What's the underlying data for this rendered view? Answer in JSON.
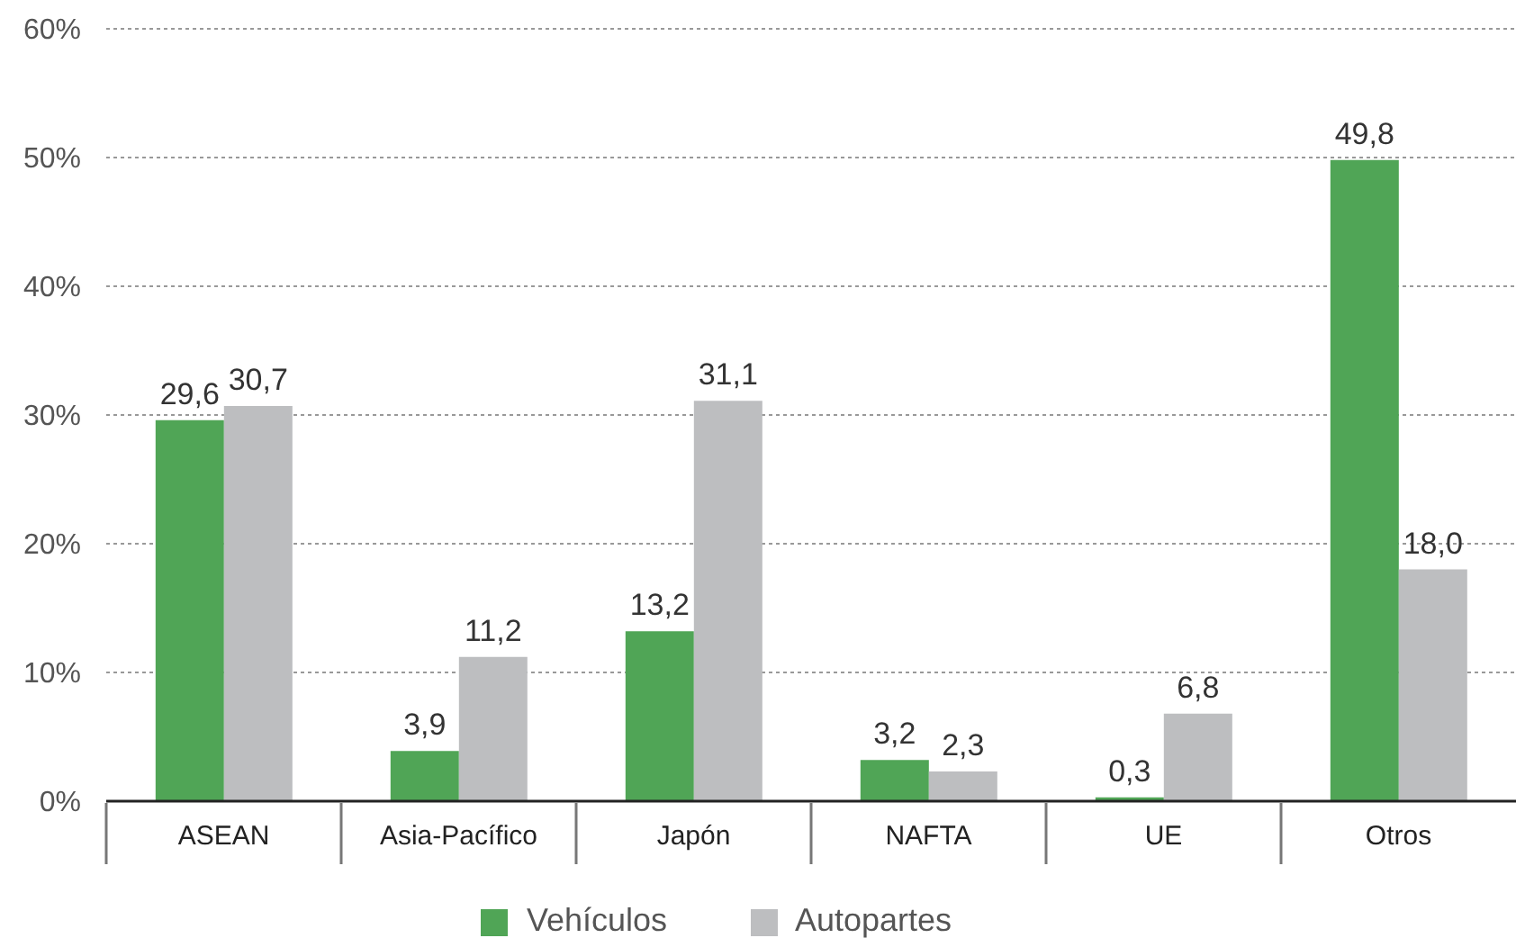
{
  "chart_data": {
    "type": "bar",
    "categories": [
      "ASEAN",
      "Asia-Pacífico",
      "Japón",
      "NAFTA",
      "UE",
      "Otros"
    ],
    "series": [
      {
        "name": "Vehículos",
        "color": "#50a556",
        "values": [
          29.6,
          3.9,
          13.2,
          3.2,
          0.3,
          49.8
        ],
        "value_labels": [
          "29,6",
          "3,9",
          "13,2",
          "3,2",
          "0,3",
          "49,8"
        ]
      },
      {
        "name": "Autopartes",
        "color": "#bdbec0",
        "values": [
          30.7,
          11.2,
          31.1,
          2.3,
          6.8,
          18.0
        ],
        "value_labels": [
          "30,7",
          "11,2",
          "31,1",
          "2,3",
          "6,8",
          "18,0"
        ]
      }
    ],
    "ylim": [
      0,
      60
    ],
    "yticks": [
      {
        "value": 0,
        "label": "0%"
      },
      {
        "value": 10,
        "label": "10%"
      },
      {
        "value": 20,
        "label": "20%"
      },
      {
        "value": 30,
        "label": "30%"
      },
      {
        "value": 40,
        "label": "40%"
      },
      {
        "value": 50,
        "label": "50%"
      },
      {
        "value": 60,
        "label": "60%"
      }
    ],
    "grid": "y",
    "legend": "bottom"
  }
}
